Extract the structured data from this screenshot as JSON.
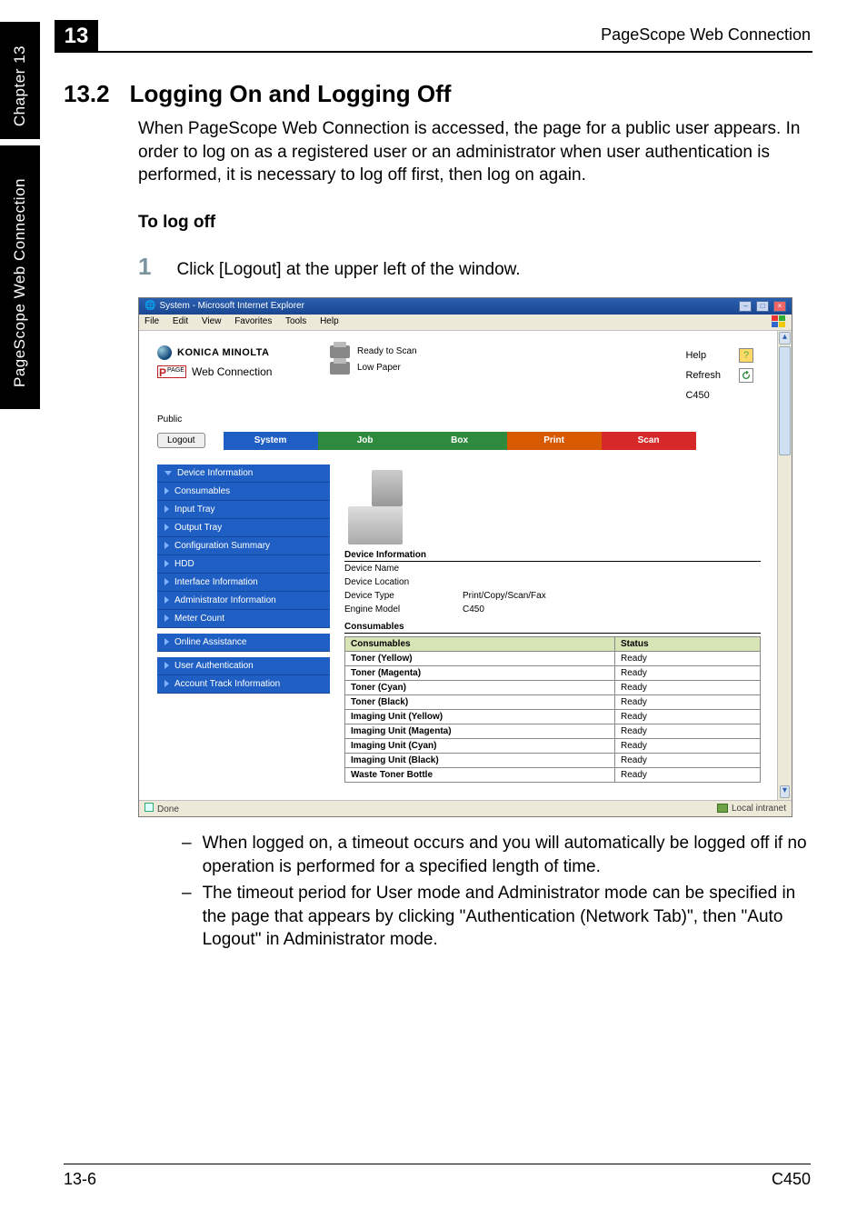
{
  "page": {
    "chapter_number": "13",
    "chapter_label": "Chapter 13",
    "sidebar_label": "PageScope Web Connection",
    "header_right": "PageScope Web Connection",
    "footer_left": "13-6",
    "footer_right": "C450"
  },
  "section": {
    "number": "13.2",
    "title": "Logging On and Logging Off",
    "intro": "When PageScope Web Connection is accessed, the page for a public user appears. In order to log on as a registered user or an administrator when user authentication is performed, it is necessary to log off first, then log on again.",
    "sub_heading": "To log off",
    "step_number": "1",
    "step_text": "Click [Logout] at the upper left of the window.",
    "bullets": [
      "When logged on, a timeout occurs and you will automatically be logged off if no operation is performed for a specified length of time.",
      "The timeout period for User mode and Administrator mode can be specified in the page that appears by clicking \"Authentication (Network Tab)\", then \"Auto Logout\" in Administrator mode."
    ]
  },
  "screenshot": {
    "window_title": "System - Microsoft Internet Explorer",
    "menu": [
      "File",
      "Edit",
      "View",
      "Favorites",
      "Tools",
      "Help"
    ],
    "brand": "KONICA MINOLTA",
    "pagescope": "Web Connection",
    "ps_prefix": "PAGE SCOPE",
    "status": [
      {
        "text": "Ready to Scan"
      },
      {
        "text": "Low Paper"
      }
    ],
    "right_links": {
      "help": "Help",
      "refresh": "Refresh",
      "model": "C450"
    },
    "public_label": "Public",
    "logout": "Logout",
    "tabs": {
      "system": "System",
      "job": "Job",
      "box": "Box",
      "print": "Print",
      "scan": "Scan"
    },
    "nav": [
      {
        "label": "Device Information",
        "arrow": "down"
      },
      {
        "label": "Consumables",
        "arrow": "right"
      },
      {
        "label": "Input Tray",
        "arrow": "right"
      },
      {
        "label": "Output Tray",
        "arrow": "right"
      },
      {
        "label": "Configuration Summary",
        "arrow": "right"
      },
      {
        "label": "HDD",
        "arrow": "right"
      },
      {
        "label": "Interface Information",
        "arrow": "right"
      },
      {
        "label": "Administrator Information",
        "arrow": "right"
      },
      {
        "label": "Meter Count",
        "arrow": "right"
      },
      {
        "label": "Online Assistance",
        "arrow": "right"
      },
      {
        "label": "User Authentication",
        "arrow": "right"
      },
      {
        "label": "Account Track Information",
        "arrow": "right"
      }
    ],
    "device_info_head": "Device Information",
    "device_info": [
      {
        "k": "Device Name",
        "v": ""
      },
      {
        "k": "Device Location",
        "v": ""
      },
      {
        "k": "Device Type",
        "v": "Print/Copy/Scan/Fax"
      },
      {
        "k": "Engine Model",
        "v": "C450"
      }
    ],
    "consumables_head": "Consumables",
    "cons_table": {
      "col1": "Consumables",
      "col2": "Status",
      "rows": [
        [
          "Toner (Yellow)",
          "Ready"
        ],
        [
          "Toner (Magenta)",
          "Ready"
        ],
        [
          "Toner (Cyan)",
          "Ready"
        ],
        [
          "Toner (Black)",
          "Ready"
        ],
        [
          "Imaging Unit (Yellow)",
          "Ready"
        ],
        [
          "Imaging Unit (Magenta)",
          "Ready"
        ],
        [
          "Imaging Unit (Cyan)",
          "Ready"
        ],
        [
          "Imaging Unit (Black)",
          "Ready"
        ],
        [
          "Waste Toner Bottle",
          "Ready"
        ]
      ]
    },
    "status_done": "Done",
    "status_zone": "Local intranet"
  },
  "colors": {
    "tab_system": "#1f5fc4",
    "tab_job": "#2e8b3d",
    "tab_print": "#d85a00",
    "tab_scan": "#d62828",
    "nav_bg": "#1f5fc4",
    "title_bar": "#2a5fb0",
    "table_header": "#d7e4b6",
    "chrome": "#ece9d8",
    "step_num": "#7a94a0"
  },
  "fonts": {
    "body_pt": 19,
    "heading_pt": 26,
    "shot_pt": 10
  }
}
